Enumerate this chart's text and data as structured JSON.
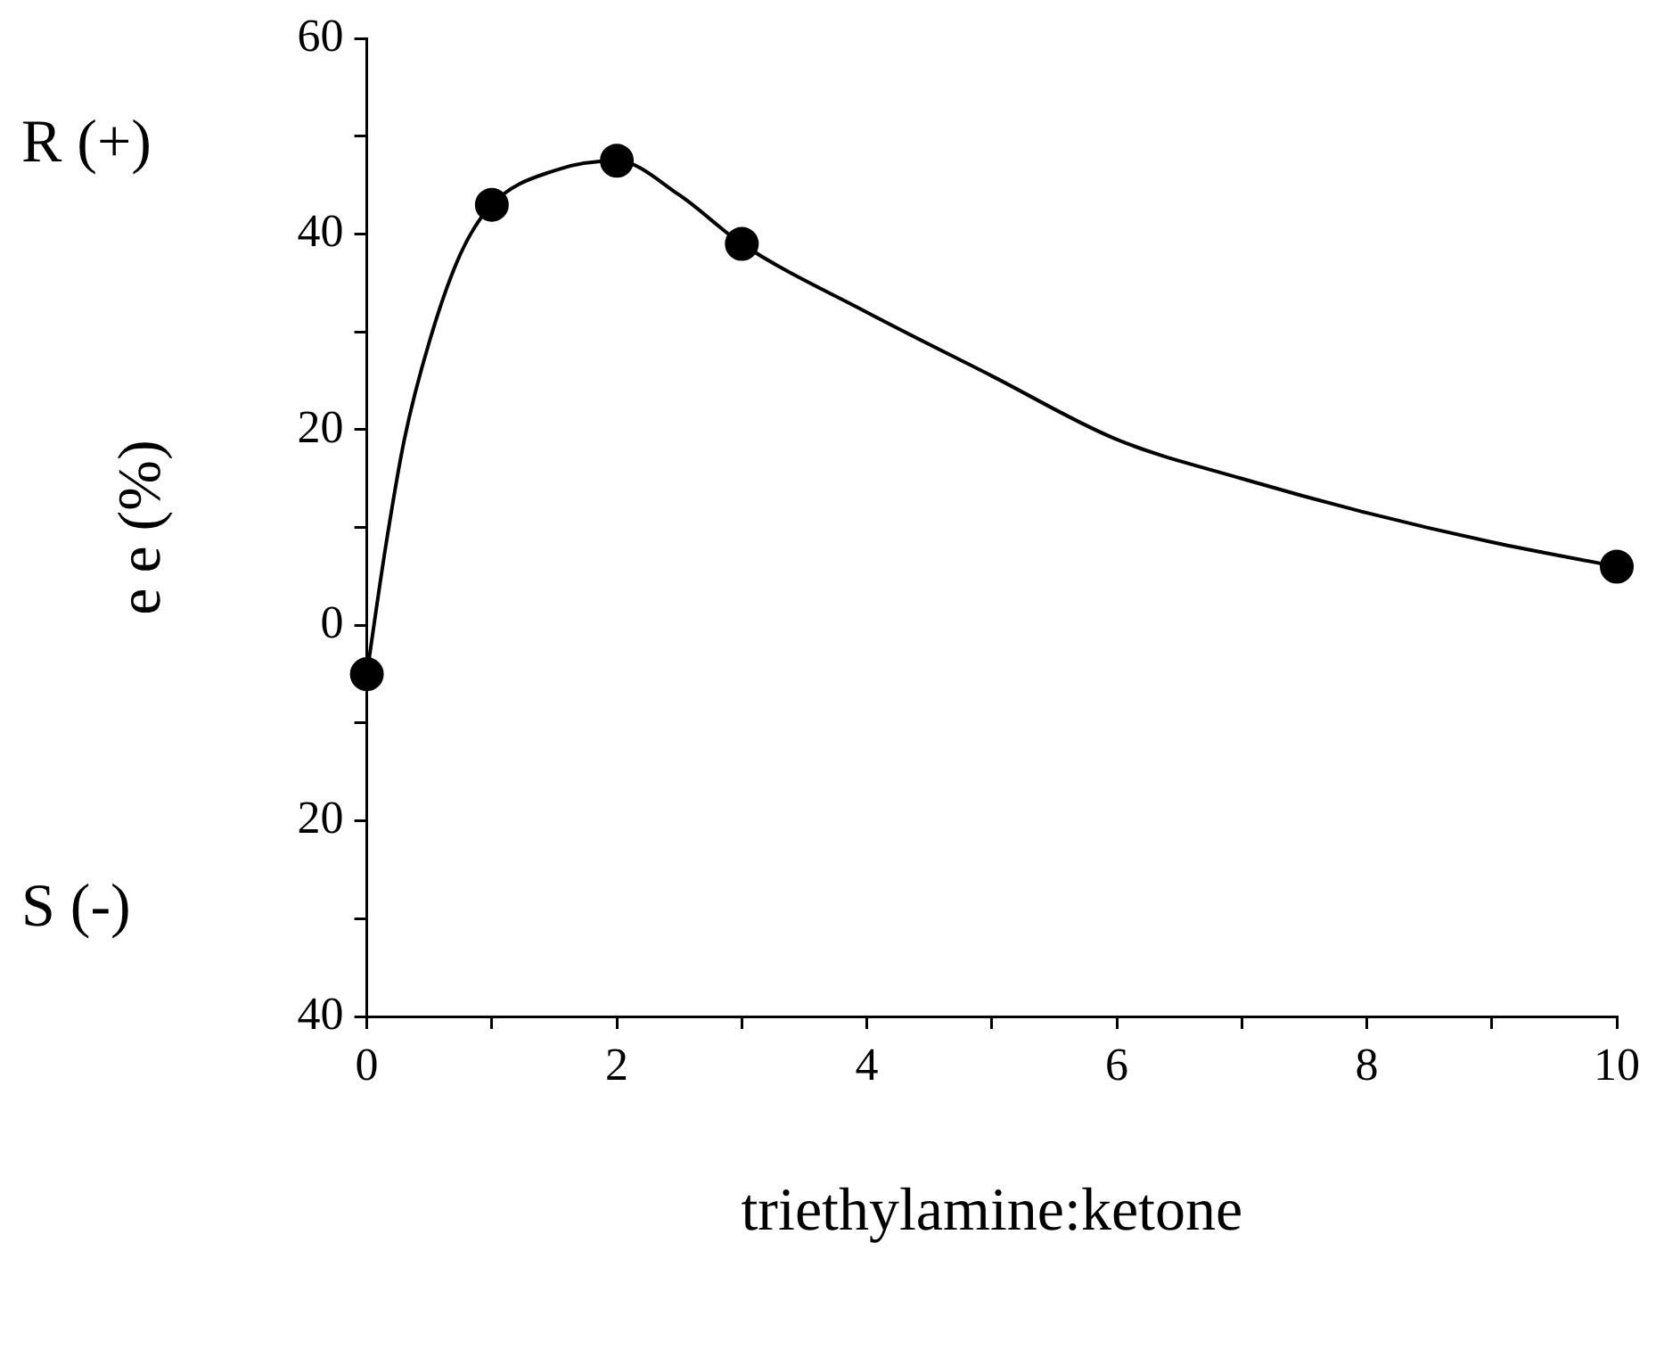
{
  "chart_data": {
    "type": "scatter",
    "xlabel": "triethylamine:ketone",
    "ylabel": "e e (%)",
    "annotations": [
      "R (+)",
      "S (-)"
    ],
    "xlim": [
      0,
      10
    ],
    "xticks": [
      0,
      {
        "value": 1,
        "label": null
      },
      2,
      {
        "value": 3,
        "label": null
      },
      4,
      {
        "value": 5,
        "label": null
      },
      6,
      {
        "value": 7,
        "label": null
      },
      8,
      {
        "value": 9,
        "label": null
      },
      10
    ],
    "ylim": [
      -40,
      60
    ],
    "yticks": [
      {
        "value": -40,
        "label": "40"
      },
      {
        "value": -30,
        "label": null
      },
      {
        "value": -20,
        "label": "20"
      },
      {
        "value": -10,
        "label": null
      },
      0,
      {
        "value": 10,
        "label": null
      },
      20,
      {
        "value": 30,
        "label": null
      },
      40,
      {
        "value": 50,
        "label": null
      },
      60
    ],
    "series": [
      {
        "type": "line",
        "color": "#000000",
        "x": [
          0,
          0.15,
          0.3,
          0.5,
          0.75,
          1,
          1.5,
          2,
          2.5,
          3,
          4,
          5,
          6,
          7,
          8,
          9,
          10
        ],
        "values": [
          -5,
          8,
          19,
          29,
          38,
          43,
          46.5,
          47.5,
          44,
          39,
          32,
          25.5,
          19,
          15,
          11.5,
          8.5,
          6
        ],
        "marker": "none"
      },
      {
        "type": "scatter",
        "color": "#000000",
        "x": [
          0,
          1,
          2,
          3,
          10
        ],
        "values": [
          -5,
          43,
          47.5,
          39,
          6
        ],
        "marker": "circle"
      }
    ],
    "grid": false,
    "legend": false
  }
}
